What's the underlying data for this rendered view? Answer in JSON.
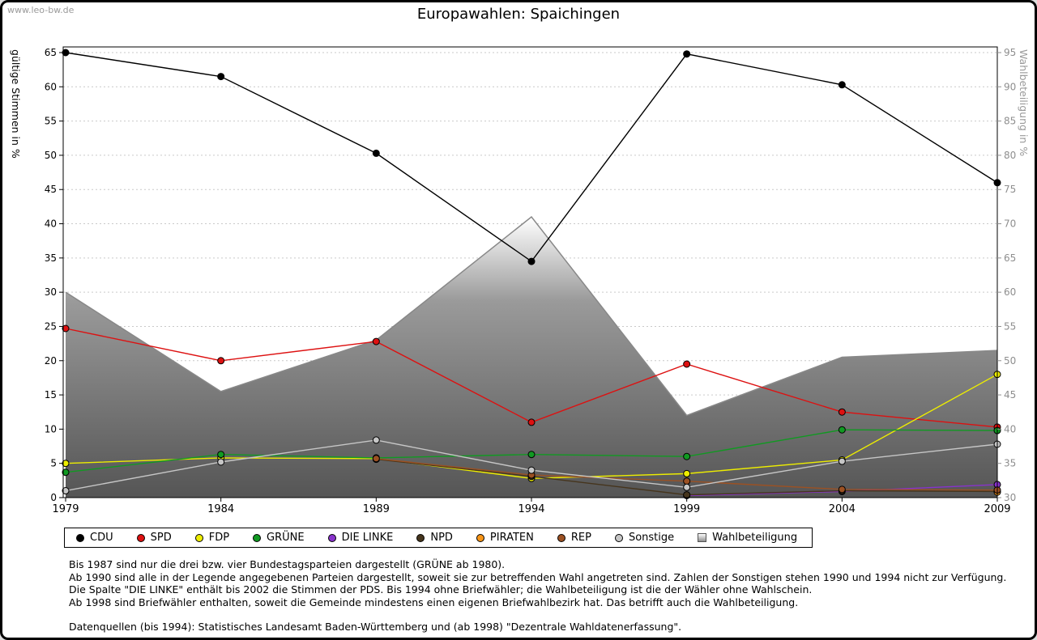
{
  "watermark": "www.leo-bw.de",
  "title": "Europawahlen: Spaichingen",
  "chart_data": {
    "type": "line",
    "title": "Europawahlen: Spaichingen",
    "x": [
      1979,
      1984,
      1989,
      1994,
      1999,
      2004,
      2009
    ],
    "left_axis": {
      "label": "gültige Stimmen in %",
      "min": 0,
      "max": 65,
      "tick_step": 5
    },
    "right_axis": {
      "label": "Wahlbeteiligung in %",
      "min": 30,
      "max": 95,
      "tick_step": 5
    },
    "grid": true,
    "legend_position": "bottom",
    "turnout_area": {
      "name": "Wahlbeteiligung",
      "axis": "right",
      "values": [
        60,
        45.5,
        53,
        71,
        42,
        50.5,
        51.5
      ],
      "fill_top": "#ffffff",
      "fill_mid": "#9a9a9a",
      "fill_bottom": "#555555",
      "edge_color": "#888888"
    },
    "series": [
      {
        "name": "CDU",
        "color": "#000000",
        "values": [
          65,
          61.5,
          50.3,
          34.5,
          64.8,
          60.3,
          46
        ]
      },
      {
        "name": "SPD",
        "color": "#dd1111",
        "values": [
          24.7,
          20,
          22.8,
          11,
          19.5,
          12.5,
          10.3
        ]
      },
      {
        "name": "FDP",
        "color": "#eded00",
        "values": [
          5,
          5.8,
          5.7,
          2.8,
          3.5,
          5.5,
          18
        ]
      },
      {
        "name": "GRÜNE",
        "color": "#119922",
        "values": [
          3.7,
          6.3,
          5.8,
          6.3,
          6,
          9.9,
          9.8
        ]
      },
      {
        "name": "DIE LINKE",
        "color": "#8833cc",
        "values": [
          null,
          null,
          null,
          null,
          0.3,
          0.9,
          1.9
        ]
      },
      {
        "name": "NPD",
        "color": "#46351d",
        "values": [
          null,
          null,
          5.6,
          3.1,
          0.4,
          1,
          0.9
        ]
      },
      {
        "name": "PIRATEN",
        "color": "#f79517",
        "values": [
          null,
          null,
          null,
          null,
          null,
          null,
          0.8
        ]
      },
      {
        "name": "REP",
        "color": "#9c5123",
        "values": [
          null,
          null,
          5.7,
          3.3,
          2.4,
          1.2,
          1.1
        ]
      },
      {
        "name": "Sonstige",
        "color": "#c6c6c6",
        "values": [
          1,
          5.2,
          8.4,
          4,
          1.5,
          5.3,
          7.8
        ]
      }
    ]
  },
  "footnotes": [
    "Bis 1987 sind nur die drei bzw. vier Bundestagsparteien dargestellt (GRÜNE ab 1980).",
    "Ab 1990 sind alle in der Legende angegebenen Parteien dargestellt, soweit sie zur betreffenden Wahl angetreten sind. Zahlen der Sonstigen stehen 1990 und 1994 nicht zur Verfügung.",
    "Die Spalte \"DIE LINKE\" enthält bis 2002 die Stimmen der PDS. Bis 1994 ohne Briefwähler; die Wahlbeteiligung ist die der Wähler ohne Wahlschein.",
    "Ab 1998 sind Briefwähler enthalten, soweit die Gemeinde mindestens einen eigenen Briefwahlbezirk hat. Das betrifft auch die Wahlbeteiligung."
  ],
  "source": "Datenquellen (bis 1994): Statistisches Landesamt Baden-Württemberg und (ab 1998) \"Dezentrale Wahldatenerfassung\"."
}
